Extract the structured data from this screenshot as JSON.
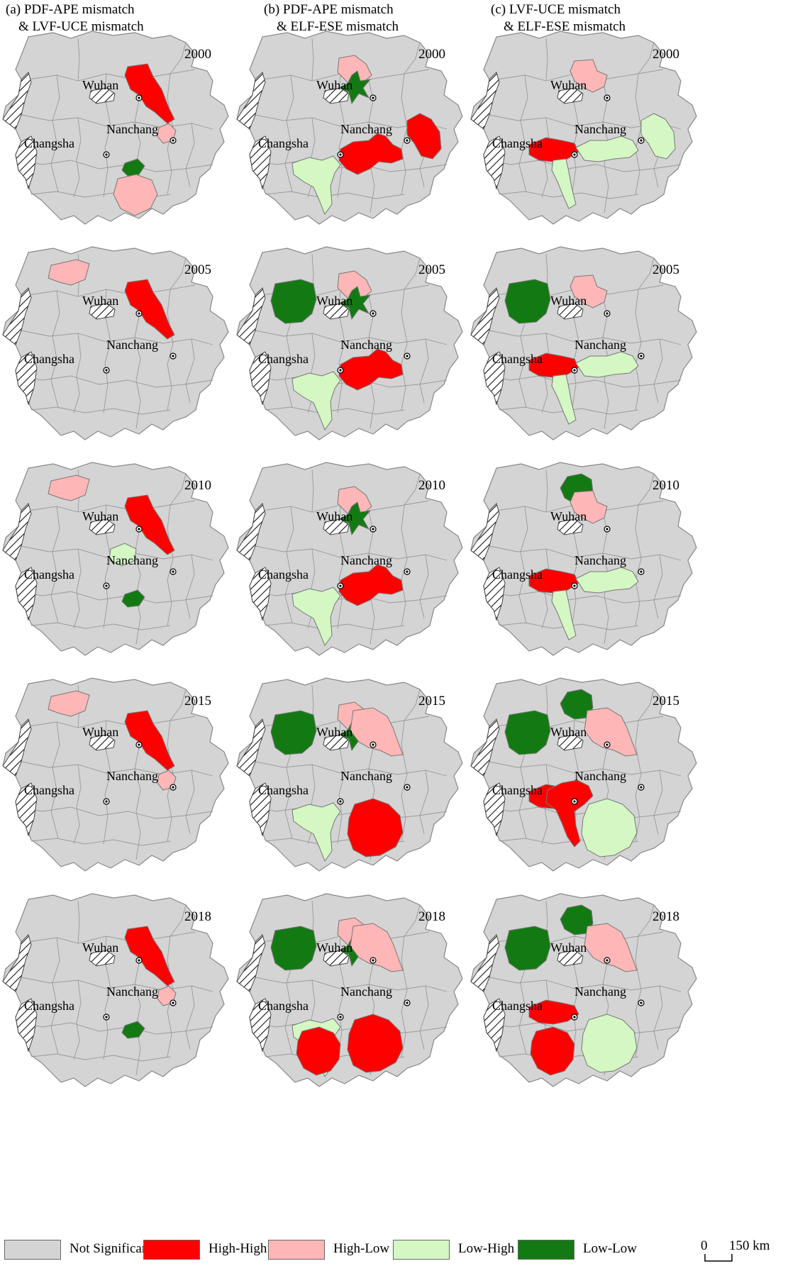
{
  "headers": [
    {
      "line1": "(a) PDF-APE mismatch",
      "line2": "& LVF-UCE mismatch"
    },
    {
      "line1": "(b) PDF-APE mismatch",
      "line2": "& ELF-ESE mismatch"
    },
    {
      "line1": "(c) LVF-UCE mismatch",
      "line2": "& ELF-ESE mismatch"
    }
  ],
  "cities": {
    "wuhan": "Wuhan",
    "nanchang": "Nanchang",
    "changsha": "Changsha"
  },
  "panels": [
    {
      "column": "a",
      "year": "2000",
      "regions": [
        {
          "zone": "ne",
          "category": "High-High"
        },
        {
          "zone": "east-nanchang",
          "category": "High-Low"
        },
        {
          "zone": "center-small",
          "category": "Low-Low"
        },
        {
          "zone": "center-south",
          "category": "High-Low"
        }
      ]
    },
    {
      "column": "b",
      "year": "2000",
      "regions": [
        {
          "zone": "wuhan-n",
          "category": "High-Low"
        },
        {
          "zone": "wuhan-star",
          "category": "Low-Low"
        },
        {
          "zone": "nanchang-band",
          "category": "High-High"
        },
        {
          "zone": "far-east",
          "category": "High-High"
        },
        {
          "zone": "changsha-corridor",
          "category": "Low-High"
        }
      ]
    },
    {
      "column": "c",
      "year": "2000",
      "regions": [
        {
          "zone": "wuhan-e",
          "category": "High-Low"
        },
        {
          "zone": "center-west",
          "category": "High-High"
        },
        {
          "zone": "mid-band",
          "category": "Low-High"
        },
        {
          "zone": "far-east",
          "category": "Low-High"
        },
        {
          "zone": "south-spur",
          "category": "Low-High"
        }
      ]
    },
    {
      "column": "a",
      "year": "2005",
      "regions": [
        {
          "zone": "nw",
          "category": "High-Low"
        },
        {
          "zone": "ne",
          "category": "High-High"
        }
      ]
    },
    {
      "column": "b",
      "year": "2005",
      "regions": [
        {
          "zone": "west-big",
          "category": "Low-Low"
        },
        {
          "zone": "wuhan-n",
          "category": "High-Low"
        },
        {
          "zone": "wuhan-star",
          "category": "Low-Low"
        },
        {
          "zone": "nanchang-band",
          "category": "High-High"
        },
        {
          "zone": "changsha-corridor",
          "category": "Low-High"
        }
      ]
    },
    {
      "column": "c",
      "year": "2005",
      "regions": [
        {
          "zone": "west-big",
          "category": "Low-Low"
        },
        {
          "zone": "wuhan-e",
          "category": "High-Low"
        },
        {
          "zone": "center-west",
          "category": "High-High"
        },
        {
          "zone": "mid-band",
          "category": "Low-High"
        },
        {
          "zone": "south-spur",
          "category": "Low-High"
        }
      ]
    },
    {
      "column": "a",
      "year": "2010",
      "regions": [
        {
          "zone": "nw",
          "category": "High-Low"
        },
        {
          "zone": "ne",
          "category": "High-High"
        },
        {
          "zone": "mid-green",
          "category": "Low-High"
        },
        {
          "zone": "center-small",
          "category": "Low-Low"
        }
      ]
    },
    {
      "column": "b",
      "year": "2010",
      "regions": [
        {
          "zone": "wuhan-n",
          "category": "High-Low"
        },
        {
          "zone": "wuhan-star",
          "category": "Low-Low"
        },
        {
          "zone": "nanchang-band",
          "category": "High-High"
        },
        {
          "zone": "changsha-corridor",
          "category": "Low-High"
        }
      ]
    },
    {
      "column": "c",
      "year": "2010",
      "regions": [
        {
          "zone": "north-top",
          "category": "Low-Low"
        },
        {
          "zone": "wuhan-e",
          "category": "High-Low"
        },
        {
          "zone": "center-west",
          "category": "High-High"
        },
        {
          "zone": "mid-band",
          "category": "Low-High"
        },
        {
          "zone": "south-spur",
          "category": "Low-High"
        }
      ]
    },
    {
      "column": "a",
      "year": "2015",
      "regions": [
        {
          "zone": "nw",
          "category": "High-Low"
        },
        {
          "zone": "ne",
          "category": "High-High"
        },
        {
          "zone": "east-nanchang",
          "category": "High-Low"
        }
      ]
    },
    {
      "column": "b",
      "year": "2015",
      "regions": [
        {
          "zone": "west-big",
          "category": "Low-Low"
        },
        {
          "zone": "wuhan-n",
          "category": "High-Low"
        },
        {
          "zone": "wuhan-star",
          "category": "Low-Low"
        },
        {
          "zone": "ne-pink",
          "category": "High-Low"
        },
        {
          "zone": "changsha-corridor",
          "category": "Low-High"
        },
        {
          "zone": "south-east-big",
          "category": "High-High"
        }
      ]
    },
    {
      "column": "c",
      "year": "2015",
      "regions": [
        {
          "zone": "west-big",
          "category": "Low-Low"
        },
        {
          "zone": "north-top",
          "category": "Low-Low"
        },
        {
          "zone": "ne-pink",
          "category": "High-Low"
        },
        {
          "zone": "center-west",
          "category": "High-High"
        },
        {
          "zone": "south-spur-red",
          "category": "High-High"
        },
        {
          "zone": "south-east-big",
          "category": "Low-High"
        }
      ]
    },
    {
      "column": "a",
      "year": "2018",
      "regions": [
        {
          "zone": "ne",
          "category": "High-High"
        },
        {
          "zone": "east-nanchang",
          "category": "High-Low"
        },
        {
          "zone": "center-small",
          "category": "Low-Low"
        }
      ]
    },
    {
      "column": "b",
      "year": "2018",
      "regions": [
        {
          "zone": "west-big",
          "category": "Low-Low"
        },
        {
          "zone": "wuhan-n",
          "category": "High-Low"
        },
        {
          "zone": "wuhan-star",
          "category": "Low-Low"
        },
        {
          "zone": "ne-pink",
          "category": "High-Low"
        },
        {
          "zone": "changsha-corridor",
          "category": "Low-High"
        },
        {
          "zone": "south-west-big",
          "category": "High-High"
        },
        {
          "zone": "south-east-big",
          "category": "High-High"
        }
      ]
    },
    {
      "column": "c",
      "year": "2018",
      "regions": [
        {
          "zone": "west-big",
          "category": "Low-Low"
        },
        {
          "zone": "north-top",
          "category": "Low-Low"
        },
        {
          "zone": "ne-pink",
          "category": "High-Low"
        },
        {
          "zone": "center-west",
          "category": "High-High"
        },
        {
          "zone": "south-west-big",
          "category": "High-High"
        },
        {
          "zone": "south-east-big",
          "category": "Low-High"
        }
      ]
    }
  ],
  "legend": [
    {
      "label": "Not Significant",
      "color": "#d4d4d4"
    },
    {
      "label": "High-High",
      "color": "#ff0000"
    },
    {
      "label": "High-Low",
      "color": "#ffb6b6"
    },
    {
      "label": "Low-High",
      "color": "#d4f7c4"
    },
    {
      "label": "Low-Low",
      "color": "#137a13"
    }
  ],
  "scale_bar": {
    "start": "0",
    "end": "150 km"
  }
}
